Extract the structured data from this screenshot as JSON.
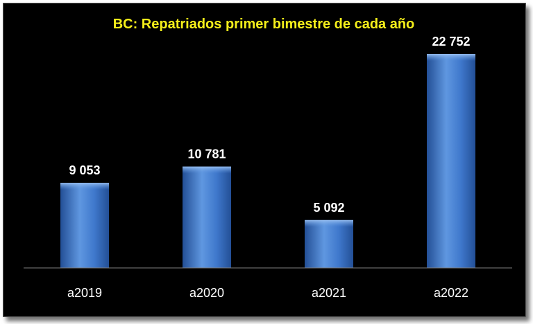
{
  "chart_data": {
    "type": "bar",
    "title": "BC: Repatriados  primer bimestre de cada año",
    "categories": [
      "a2019",
      "a2020",
      "a2021",
      "a2022"
    ],
    "values": [
      9053,
      10781,
      5092,
      22752
    ],
    "value_labels": [
      "9 053",
      "10 781",
      "5 092",
      "22 752"
    ],
    "xlabel": "",
    "ylabel": "",
    "ylim": [
      0,
      24000
    ],
    "grid": false,
    "legend": "none",
    "colors": {
      "background": "#000000",
      "title": "#f5ef1a",
      "bar_light": "#5f97e0",
      "bar_mid": "#3f78cc",
      "bar_dark": "#234f96",
      "axis": "#7f7f7f",
      "text": "#ffffff"
    }
  }
}
